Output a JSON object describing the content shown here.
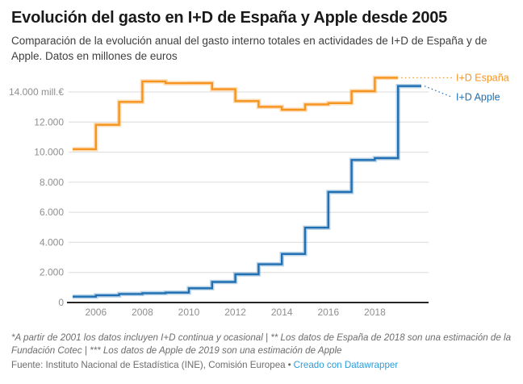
{
  "header": {
    "title": "Evolución del gasto en I+D de España y Apple desde 2005",
    "subtitle": "Comparación de la evolución anual del gasto interno totales en actividades de I+D de España y de Apple. Datos en millones de euros"
  },
  "chart_data": {
    "type": "line",
    "step": "after",
    "title": "Evolución del gasto en I+D de España y Apple desde 2005",
    "unit": "millones de euros",
    "grid": "horizontal-only",
    "legend_position": "end-of-line-labels-right",
    "xlim": [
      2005,
      2019.8
    ],
    "ylim": [
      0,
      15000
    ],
    "x_ticks": [
      "2006",
      "2008",
      "2010",
      "2012",
      "2014",
      "2016",
      "2018"
    ],
    "x_tick_years": [
      2006,
      2008,
      2010,
      2012,
      2014,
      2016,
      2018
    ],
    "y_ticks": [
      0,
      2000,
      4000,
      6000,
      8000,
      10000,
      12000,
      14000
    ],
    "y_tick_labels": [
      "0",
      "2.000",
      "4.000",
      "6.000",
      "8.000",
      "10.000",
      "12.000",
      "14.000 mill.€"
    ],
    "series": [
      {
        "name": "I+D España",
        "color": "#F7941E",
        "start_year": 2005,
        "years": [
          2005,
          2006,
          2007,
          2008,
          2009,
          2010,
          2011,
          2012,
          2013,
          2014,
          2015,
          2016,
          2017,
          2018
        ],
        "values": [
          10197,
          11815,
          13342,
          14701,
          14582,
          14588,
          14184,
          13392,
          13012,
          12821,
          13172,
          13260,
          14052,
          14946
        ]
      },
      {
        "name": "I+D Apple",
        "color": "#1F6FB2",
        "start_year": 2005,
        "years": [
          2005,
          2006,
          2007,
          2008,
          2009,
          2010,
          2011,
          2012,
          2013,
          2014,
          2015,
          2016,
          2017,
          2018,
          2019
        ],
        "values": [
          390,
          480,
          570,
          620,
          660,
          950,
          1370,
          1880,
          2540,
          3230,
          4980,
          7350,
          9480,
          9600,
          14390
        ]
      }
    ],
    "colors": {
      "espana_line": "#F7941E",
      "apple_line": "#1F6FB2",
      "gridline": "#dcdcdc",
      "axis_line": "#262626",
      "tick_label": "#8f8f8f",
      "link": "#2d9cdb"
    }
  },
  "footer": {
    "note": "*A partir de 2001 los datos incluyen I+D continua y ocasional | ** Los datos de España de 2018 son una estimación de la Fundación Cotec | *** Los datos de Apple de 2019 son una estimación de Apple",
    "source_prefix": "Fuente: Instituto Nacional de Estadística (INE), Comisión Europea",
    "separator": "•",
    "attribution": "Creado con Datawrapper"
  }
}
